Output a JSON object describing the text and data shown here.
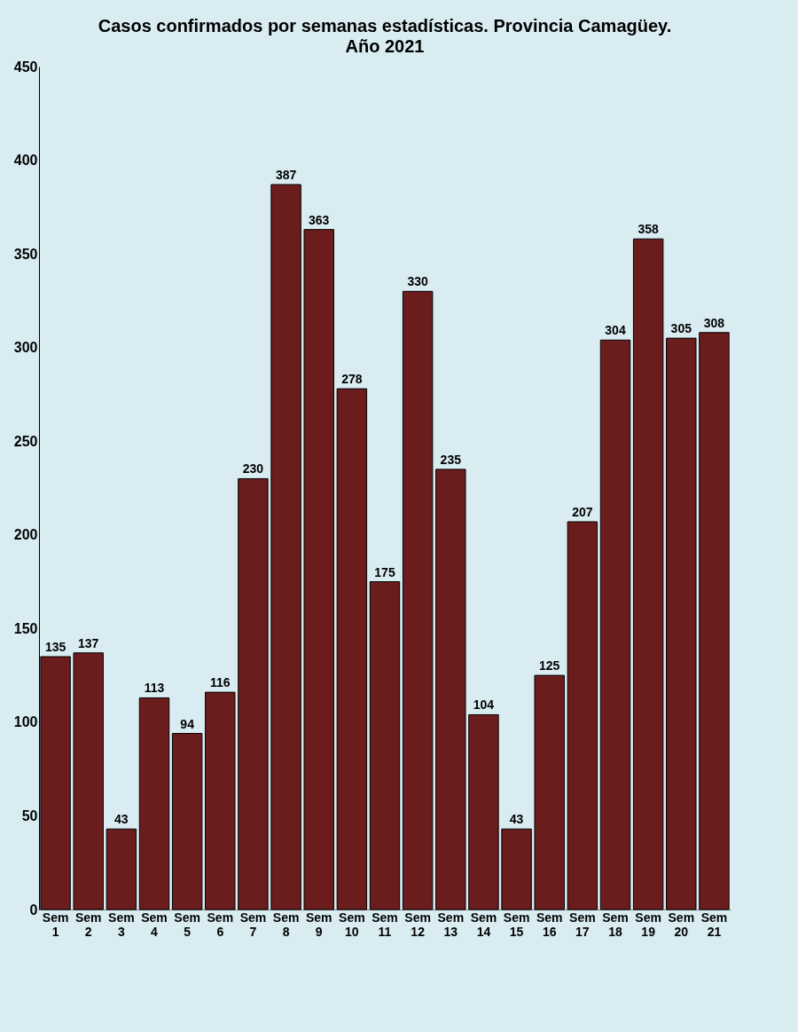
{
  "chart_data": {
    "type": "bar",
    "title": "Casos confirmados por semanas estadísticas. Provincia Camagüey.",
    "subtitle": "Año 2021",
    "categories": [
      "Sem 1",
      "Sem 2",
      "Sem 3",
      "Sem 4",
      "Sem 5",
      "Sem 6",
      "Sem 7",
      "Sem 8",
      "Sem 9",
      "Sem 10",
      "Sem 11",
      "Sem 12",
      "Sem 13",
      "Sem 14",
      "Sem 15",
      "Sem 16",
      "Sem 17",
      "Sem 18",
      "Sem 19",
      "Sem 20",
      "Sem 21"
    ],
    "values": [
      135,
      137,
      43,
      113,
      94,
      116,
      230,
      387,
      363,
      278,
      175,
      330,
      235,
      104,
      43,
      125,
      207,
      304,
      358,
      305,
      308
    ],
    "color": "#6b1c1c",
    "ylim": [
      0,
      450
    ],
    "yticks": [
      0,
      50,
      100,
      150,
      200,
      250,
      300,
      350,
      400,
      450
    ],
    "grid": false,
    "data_labels": true
  }
}
